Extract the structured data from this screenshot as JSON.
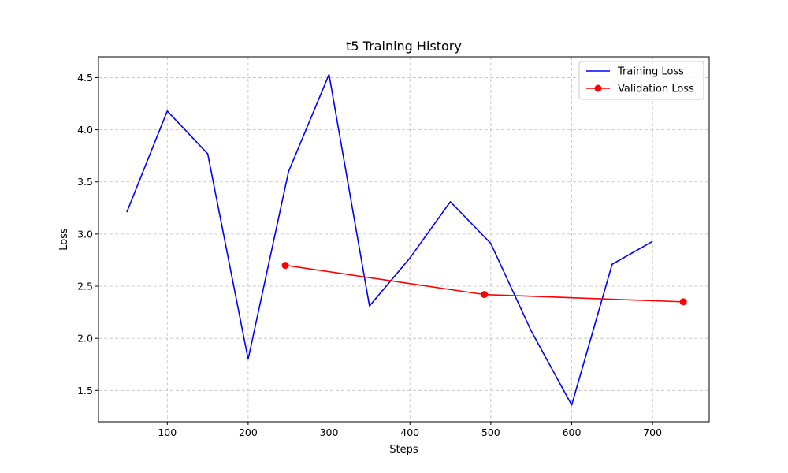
{
  "chart_data": {
    "type": "line",
    "title": "t5 Training History",
    "xlabel": "Steps",
    "ylabel": "Loss",
    "xlim": [
      15,
      770
    ],
    "ylim": [
      1.2,
      4.7
    ],
    "xticks": [
      100,
      200,
      300,
      400,
      500,
      600,
      700
    ],
    "yticks": [
      1.5,
      2.0,
      2.5,
      3.0,
      3.5,
      4.0,
      4.5
    ],
    "grid": true,
    "legend_position": "top-right",
    "series": [
      {
        "name": "Training Loss",
        "color": "#0000ff",
        "marker": "none",
        "x": [
          50,
          100,
          150,
          200,
          250,
          300,
          350,
          400,
          450,
          500,
          550,
          600,
          650,
          700
        ],
        "y": [
          3.21,
          4.18,
          3.77,
          1.8,
          3.6,
          4.53,
          2.31,
          2.77,
          3.31,
          2.91,
          2.07,
          1.36,
          2.71,
          2.93
        ]
      },
      {
        "name": "Validation Loss",
        "color": "#ff0000",
        "marker": "circle",
        "x": [
          246,
          492,
          738
        ],
        "y": [
          2.7,
          2.42,
          2.35
        ]
      }
    ]
  }
}
